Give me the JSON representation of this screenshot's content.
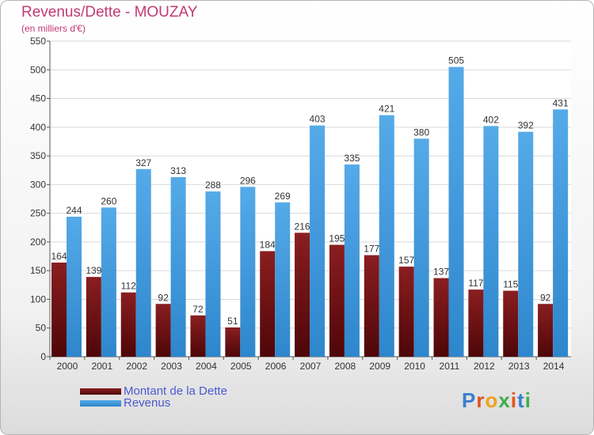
{
  "chart_data": {
    "type": "bar",
    "title": "Revenus/Dette - MOUZAY",
    "subtitle": "(en milliers d'€)",
    "categories": [
      "2000",
      "2001",
      "2002",
      "2003",
      "2004",
      "2005",
      "2006",
      "2007",
      "2008",
      "2009",
      "2010",
      "2011",
      "2012",
      "2013",
      "2014"
    ],
    "series": [
      {
        "name": "Montant de la Dette",
        "color": "#7a1416",
        "values": [
          164,
          139,
          112,
          92,
          72,
          51,
          184,
          216,
          195,
          177,
          157,
          137,
          117,
          115,
          92
        ]
      },
      {
        "name": "Revenus",
        "color": "#3d97dd",
        "values": [
          244,
          260,
          327,
          313,
          288,
          296,
          269,
          403,
          335,
          421,
          380,
          505,
          402,
          392,
          431
        ]
      }
    ],
    "ylim": [
      0,
      550
    ],
    "yticks": [
      0,
      50,
      100,
      150,
      200,
      250,
      300,
      350,
      400,
      450,
      500,
      550
    ],
    "grid": true,
    "legend_position": "bottom-left",
    "xlabel": "",
    "ylabel": ""
  },
  "logo": {
    "text": "Proxiti",
    "colors": [
      "#3a7fd0",
      "#e0531f",
      "#f0a21d",
      "#3fae49",
      "#e0531f",
      "#3a7fd0",
      "#3fae49"
    ]
  }
}
